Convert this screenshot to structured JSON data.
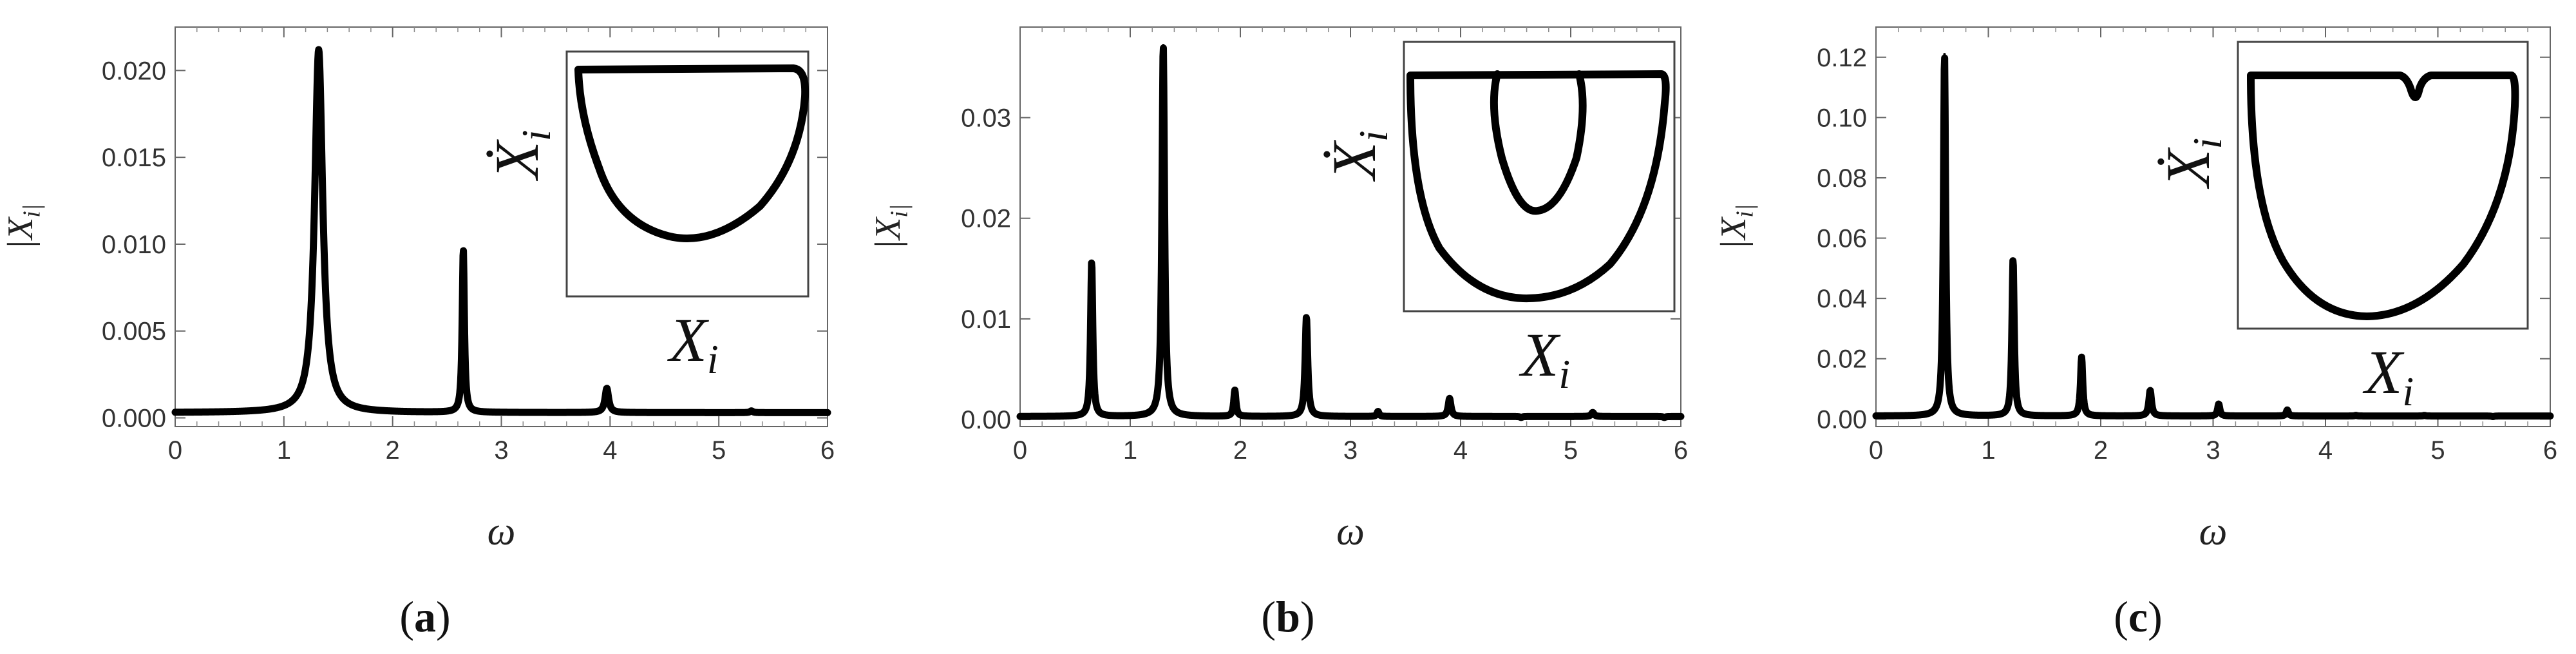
{
  "chart_data": [
    {
      "type": "line",
      "panel_label": "a",
      "xlabel": "ω",
      "ylabel": "|X_i|",
      "xlim": [
        0,
        6
      ],
      "ylim": [
        -0.0005,
        0.0225
      ],
      "xticks": [
        "0",
        "1",
        "2",
        "3",
        "4",
        "5",
        "6"
      ],
      "yticks": [
        "0.000",
        "0.005",
        "0.010",
        "0.015",
        "0.020"
      ],
      "ytick_values": [
        0,
        0.005,
        0.01,
        0.015,
        0.02
      ],
      "baseline": 0.0003,
      "peaks": [
        {
          "x": 1.32,
          "y": 0.0212,
          "width": 0.045
        },
        {
          "x": 2.65,
          "y": 0.0097,
          "width": 0.012
        },
        {
          "x": 3.97,
          "y": 0.0017,
          "width": 0.02
        },
        {
          "x": 5.3,
          "y": 0.0004,
          "width": 0.015
        }
      ],
      "inset": {
        "shape": "single-loop",
        "xlabel": "X_i",
        "ylabel": "Ẋ_i"
      }
    },
    {
      "type": "line",
      "panel_label": "b",
      "xlabel": "ω",
      "ylabel": "|X_i|",
      "xlim": [
        0,
        6
      ],
      "ylim": [
        -0.0007,
        0.039
      ],
      "xticks": [
        "0",
        "1",
        "2",
        "3",
        "4",
        "5",
        "6"
      ],
      "yticks": [
        "0.00",
        "0.01",
        "0.02",
        "0.03"
      ],
      "ytick_values": [
        0,
        0.01,
        0.02,
        0.03
      ],
      "baseline": 0.0003,
      "peaks": [
        {
          "x": 0.65,
          "y": 0.0157,
          "width": 0.012
        },
        {
          "x": 1.3,
          "y": 0.0372,
          "width": 0.014
        },
        {
          "x": 1.95,
          "y": 0.0029,
          "width": 0.012
        },
        {
          "x": 2.6,
          "y": 0.0102,
          "width": 0.014
        },
        {
          "x": 3.25,
          "y": 0.0008,
          "width": 0.012
        },
        {
          "x": 3.9,
          "y": 0.0021,
          "width": 0.015
        },
        {
          "x": 4.55,
          "y": 0.0002,
          "width": 0.012
        },
        {
          "x": 5.2,
          "y": 0.0007,
          "width": 0.015
        },
        {
          "x": 5.85,
          "y": 0.0002,
          "width": 0.012
        }
      ],
      "inset": {
        "shape": "nested-loop",
        "xlabel": "X_i",
        "ylabel": "Ẋ_i"
      }
    },
    {
      "type": "line",
      "panel_label": "c",
      "xlabel": "ω",
      "ylabel": "|X_i|",
      "xlim": [
        0,
        6
      ],
      "ylim": [
        -0.0025,
        0.13
      ],
      "xticks": [
        "0",
        "1",
        "2",
        "3",
        "4",
        "5",
        "6"
      ],
      "yticks": [
        "0.00",
        "0.02",
        "0.04",
        "0.06",
        "0.08",
        "0.10",
        "0.12"
      ],
      "ytick_values": [
        0,
        0.02,
        0.04,
        0.06,
        0.08,
        0.1,
        0.12
      ],
      "baseline": 0.001,
      "peaks": [
        {
          "x": 0.61,
          "y": 0.121,
          "width": 0.012
        },
        {
          "x": 1.22,
          "y": 0.053,
          "width": 0.012
        },
        {
          "x": 1.83,
          "y": 0.0205,
          "width": 0.012
        },
        {
          "x": 2.44,
          "y": 0.0095,
          "width": 0.014
        },
        {
          "x": 3.05,
          "y": 0.005,
          "width": 0.012
        },
        {
          "x": 3.66,
          "y": 0.003,
          "width": 0.012
        },
        {
          "x": 4.27,
          "y": 0.0012,
          "width": 0.012
        },
        {
          "x": 4.88,
          "y": 0.0012,
          "width": 0.012
        },
        {
          "x": 5.49,
          "y": 0.0008,
          "width": 0.012
        }
      ],
      "inset": {
        "shape": "notched-loop",
        "xlabel": "X_i",
        "ylabel": "Ẋ_i"
      }
    }
  ]
}
